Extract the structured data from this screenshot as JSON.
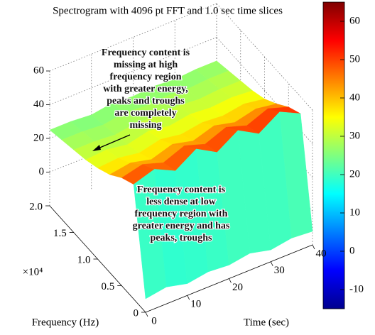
{
  "chart_data": {
    "type": "surface",
    "title": "Spectrogram with 4096 pt FFT and 1.0 sec time slices",
    "xlabel": "Time (sec)",
    "ylabel": "Frequency (Hz)",
    "y_multiplier_label": "×10⁴",
    "annotations": [
      [
        "Frequency content is",
        "missing at high",
        "frequency region",
        "with greater energy,",
        "peaks and troughs",
        "are completely",
        "missing"
      ],
      [
        "Frequency content is",
        "less dense at low",
        "frequency region with",
        "greater energy and has",
        "peaks, troughs"
      ]
    ],
    "x": [
      0,
      5,
      10,
      15,
      20,
      25,
      30,
      35,
      40
    ],
    "y": [
      0,
      2500,
      5000,
      7500,
      10000,
      12500,
      15000,
      17500,
      20000
    ],
    "z": [
      [
        -12,
        -10,
        -13,
        -11,
        -12,
        -10,
        -13,
        -11,
        -12
      ],
      [
        48,
        52,
        46,
        54,
        47,
        55,
        48,
        56,
        50
      ],
      [
        44,
        47,
        43,
        48,
        44,
        49,
        45,
        50,
        46
      ],
      [
        38,
        40,
        37,
        41,
        38,
        42,
        39,
        42,
        40
      ],
      [
        34,
        35,
        33,
        36,
        34,
        36,
        35,
        37,
        35
      ],
      [
        31,
        32,
        30,
        33,
        31,
        33,
        32,
        33,
        32
      ],
      [
        29,
        29,
        28,
        30,
        29,
        30,
        29,
        30,
        30
      ],
      [
        27,
        27,
        26,
        28,
        27,
        28,
        27,
        28,
        28
      ],
      [
        25,
        25,
        24,
        26,
        25,
        26,
        25,
        26,
        26
      ]
    ],
    "xlim": [
      0,
      40
    ],
    "xticks": [
      0,
      10,
      20,
      30,
      40
    ],
    "ylim": [
      0,
      20000
    ],
    "yticks": [
      0,
      {
        "value": 5000,
        "label": "0.5"
      },
      {
        "value": 10000,
        "label": "1.0"
      },
      {
        "value": 15000,
        "label": "1.5"
      },
      {
        "value": 20000,
        "label": "2.0"
      }
    ],
    "zlim": [
      -20,
      60
    ],
    "zticks": [
      0,
      20,
      40,
      60
    ],
    "clim": [
      -15,
      65
    ],
    "cticks": [
      -10,
      0,
      10,
      20,
      30,
      40,
      50,
      60
    ],
    "colormap": "jet",
    "grid": true
  }
}
